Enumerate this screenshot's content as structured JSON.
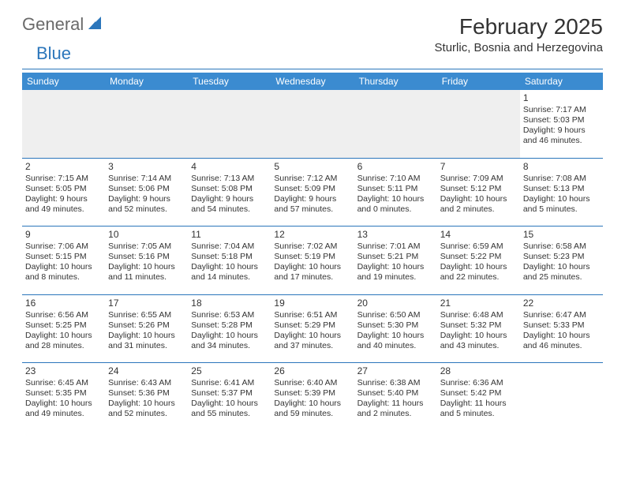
{
  "brand": {
    "text1": "General",
    "text2": "Blue"
  },
  "title": "February 2025",
  "location": "Sturlic, Bosnia and Herzegovina",
  "colors": {
    "header_bg": "#3b8bd0",
    "header_text": "#ffffff",
    "rule": "#2b76bb",
    "body_text": "#333333",
    "shade": "#efefef",
    "brand_gray": "#6a6a6a",
    "brand_blue": "#2b76bb"
  },
  "day_headers": [
    "Sunday",
    "Monday",
    "Tuesday",
    "Wednesday",
    "Thursday",
    "Friday",
    "Saturday"
  ],
  "weeks": [
    [
      null,
      null,
      null,
      null,
      null,
      null,
      {
        "n": "1",
        "sr": "Sunrise: 7:17 AM",
        "ss": "Sunset: 5:03 PM",
        "d1": "Daylight: 9 hours",
        "d2": "and 46 minutes."
      }
    ],
    [
      {
        "n": "2",
        "sr": "Sunrise: 7:15 AM",
        "ss": "Sunset: 5:05 PM",
        "d1": "Daylight: 9 hours",
        "d2": "and 49 minutes."
      },
      {
        "n": "3",
        "sr": "Sunrise: 7:14 AM",
        "ss": "Sunset: 5:06 PM",
        "d1": "Daylight: 9 hours",
        "d2": "and 52 minutes."
      },
      {
        "n": "4",
        "sr": "Sunrise: 7:13 AM",
        "ss": "Sunset: 5:08 PM",
        "d1": "Daylight: 9 hours",
        "d2": "and 54 minutes."
      },
      {
        "n": "5",
        "sr": "Sunrise: 7:12 AM",
        "ss": "Sunset: 5:09 PM",
        "d1": "Daylight: 9 hours",
        "d2": "and 57 minutes."
      },
      {
        "n": "6",
        "sr": "Sunrise: 7:10 AM",
        "ss": "Sunset: 5:11 PM",
        "d1": "Daylight: 10 hours",
        "d2": "and 0 minutes."
      },
      {
        "n": "7",
        "sr": "Sunrise: 7:09 AM",
        "ss": "Sunset: 5:12 PM",
        "d1": "Daylight: 10 hours",
        "d2": "and 2 minutes."
      },
      {
        "n": "8",
        "sr": "Sunrise: 7:08 AM",
        "ss": "Sunset: 5:13 PM",
        "d1": "Daylight: 10 hours",
        "d2": "and 5 minutes."
      }
    ],
    [
      {
        "n": "9",
        "sr": "Sunrise: 7:06 AM",
        "ss": "Sunset: 5:15 PM",
        "d1": "Daylight: 10 hours",
        "d2": "and 8 minutes."
      },
      {
        "n": "10",
        "sr": "Sunrise: 7:05 AM",
        "ss": "Sunset: 5:16 PM",
        "d1": "Daylight: 10 hours",
        "d2": "and 11 minutes."
      },
      {
        "n": "11",
        "sr": "Sunrise: 7:04 AM",
        "ss": "Sunset: 5:18 PM",
        "d1": "Daylight: 10 hours",
        "d2": "and 14 minutes."
      },
      {
        "n": "12",
        "sr": "Sunrise: 7:02 AM",
        "ss": "Sunset: 5:19 PM",
        "d1": "Daylight: 10 hours",
        "d2": "and 17 minutes."
      },
      {
        "n": "13",
        "sr": "Sunrise: 7:01 AM",
        "ss": "Sunset: 5:21 PM",
        "d1": "Daylight: 10 hours",
        "d2": "and 19 minutes."
      },
      {
        "n": "14",
        "sr": "Sunrise: 6:59 AM",
        "ss": "Sunset: 5:22 PM",
        "d1": "Daylight: 10 hours",
        "d2": "and 22 minutes."
      },
      {
        "n": "15",
        "sr": "Sunrise: 6:58 AM",
        "ss": "Sunset: 5:23 PM",
        "d1": "Daylight: 10 hours",
        "d2": "and 25 minutes."
      }
    ],
    [
      {
        "n": "16",
        "sr": "Sunrise: 6:56 AM",
        "ss": "Sunset: 5:25 PM",
        "d1": "Daylight: 10 hours",
        "d2": "and 28 minutes."
      },
      {
        "n": "17",
        "sr": "Sunrise: 6:55 AM",
        "ss": "Sunset: 5:26 PM",
        "d1": "Daylight: 10 hours",
        "d2": "and 31 minutes."
      },
      {
        "n": "18",
        "sr": "Sunrise: 6:53 AM",
        "ss": "Sunset: 5:28 PM",
        "d1": "Daylight: 10 hours",
        "d2": "and 34 minutes."
      },
      {
        "n": "19",
        "sr": "Sunrise: 6:51 AM",
        "ss": "Sunset: 5:29 PM",
        "d1": "Daylight: 10 hours",
        "d2": "and 37 minutes."
      },
      {
        "n": "20",
        "sr": "Sunrise: 6:50 AM",
        "ss": "Sunset: 5:30 PM",
        "d1": "Daylight: 10 hours",
        "d2": "and 40 minutes."
      },
      {
        "n": "21",
        "sr": "Sunrise: 6:48 AM",
        "ss": "Sunset: 5:32 PM",
        "d1": "Daylight: 10 hours",
        "d2": "and 43 minutes."
      },
      {
        "n": "22",
        "sr": "Sunrise: 6:47 AM",
        "ss": "Sunset: 5:33 PM",
        "d1": "Daylight: 10 hours",
        "d2": "and 46 minutes."
      }
    ],
    [
      {
        "n": "23",
        "sr": "Sunrise: 6:45 AM",
        "ss": "Sunset: 5:35 PM",
        "d1": "Daylight: 10 hours",
        "d2": "and 49 minutes."
      },
      {
        "n": "24",
        "sr": "Sunrise: 6:43 AM",
        "ss": "Sunset: 5:36 PM",
        "d1": "Daylight: 10 hours",
        "d2": "and 52 minutes."
      },
      {
        "n": "25",
        "sr": "Sunrise: 6:41 AM",
        "ss": "Sunset: 5:37 PM",
        "d1": "Daylight: 10 hours",
        "d2": "and 55 minutes."
      },
      {
        "n": "26",
        "sr": "Sunrise: 6:40 AM",
        "ss": "Sunset: 5:39 PM",
        "d1": "Daylight: 10 hours",
        "d2": "and 59 minutes."
      },
      {
        "n": "27",
        "sr": "Sunrise: 6:38 AM",
        "ss": "Sunset: 5:40 PM",
        "d1": "Daylight: 11 hours",
        "d2": "and 2 minutes."
      },
      {
        "n": "28",
        "sr": "Sunrise: 6:36 AM",
        "ss": "Sunset: 5:42 PM",
        "d1": "Daylight: 11 hours",
        "d2": "and 5 minutes."
      },
      null
    ]
  ]
}
